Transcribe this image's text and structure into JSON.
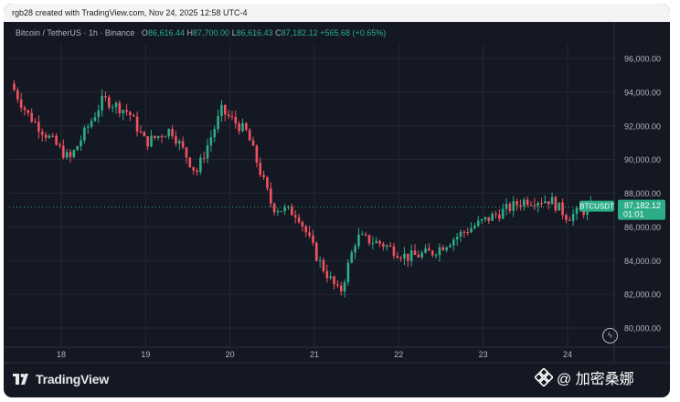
{
  "header": {
    "created_text": "rgb28 created with TradingView.com, Nov 24, 2025 12:58 UTC-4"
  },
  "legend": {
    "symbol": "Bitcoin / TetherUS · 1h · Binance",
    "o_label": "O",
    "o_value": "86,616.44",
    "h_label": "H",
    "h_value": "87,700.00",
    "l_label": "L",
    "l_value": "86,616.43",
    "c_label": "C",
    "c_value": "87,182.12",
    "change": "+565.68 (+0.65%)"
  },
  "price_tag": {
    "ticker": "BTCUSDT",
    "price": "87,182.12",
    "countdown": "01:01"
  },
  "footer": {
    "brand": "TradingView",
    "watermark_text": "@ 加密桑娜"
  },
  "colors": {
    "background": "#141823",
    "up": "#2cad88",
    "down": "#f1525f",
    "grid": "#232836",
    "axis_text": "#b2b5be"
  },
  "chart_data": {
    "type": "candlestick",
    "interval": "1h",
    "x_labels": [
      "18",
      "19",
      "20",
      "21",
      "22",
      "23",
      "24"
    ],
    "y_ticks": [
      80000,
      82000,
      84000,
      86000,
      88000,
      90000,
      92000,
      94000,
      96000
    ],
    "y_tick_labels": [
      "80,000.00",
      "82,000.00",
      "84,000.00",
      "86,000.00",
      "88,000.00",
      "90,000.00",
      "92,000.00",
      "94,000.00",
      "96,000.00"
    ],
    "ylim": [
      79000,
      97300
    ],
    "last_price": 87182.12,
    "approx_close_path": [
      {
        "day": 17.4,
        "price": 94500
      },
      {
        "day": 17.6,
        "price": 92700
      },
      {
        "day": 17.8,
        "price": 91600
      },
      {
        "day": 18.1,
        "price": 90000
      },
      {
        "day": 18.3,
        "price": 91800
      },
      {
        "day": 18.5,
        "price": 93600
      },
      {
        "day": 18.8,
        "price": 92800
      },
      {
        "day": 19.0,
        "price": 91000
      },
      {
        "day": 19.3,
        "price": 91800
      },
      {
        "day": 19.6,
        "price": 89200
      },
      {
        "day": 19.9,
        "price": 92900
      },
      {
        "day": 20.2,
        "price": 91600
      },
      {
        "day": 20.5,
        "price": 87200
      },
      {
        "day": 20.8,
        "price": 86800
      },
      {
        "day": 21.05,
        "price": 84000
      },
      {
        "day": 21.3,
        "price": 82000
      },
      {
        "day": 21.5,
        "price": 85400
      },
      {
        "day": 21.8,
        "price": 85000
      },
      {
        "day": 22.1,
        "price": 84200
      },
      {
        "day": 22.4,
        "price": 84500
      },
      {
        "day": 22.8,
        "price": 85800
      },
      {
        "day": 23.1,
        "price": 86600
      },
      {
        "day": 23.5,
        "price": 87600
      },
      {
        "day": 23.8,
        "price": 87600
      },
      {
        "day": 24.0,
        "price": 86600
      },
      {
        "day": 24.3,
        "price": 87182
      }
    ]
  }
}
